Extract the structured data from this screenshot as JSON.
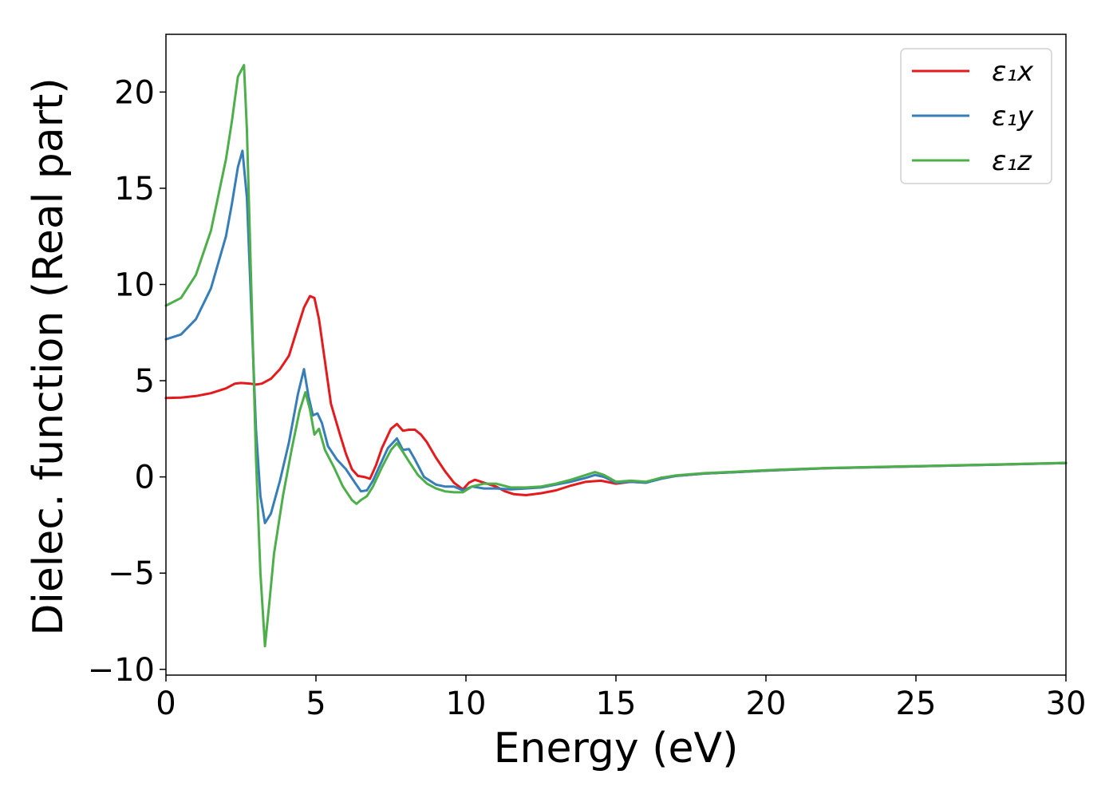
{
  "chart_data": {
    "type": "line",
    "xlabel": "Energy (eV)",
    "ylabel": "Dielec. function (Real part)",
    "xlim": [
      0,
      30
    ],
    "ylim": [
      -10.3,
      23
    ],
    "xticks": [
      0,
      5,
      10,
      15,
      20,
      25,
      30
    ],
    "xtick_labels": [
      "0",
      "5",
      "10",
      "15",
      "20",
      "25",
      "30"
    ],
    "yticks": [
      -10,
      -5,
      0,
      5,
      10,
      15,
      20
    ],
    "ytick_labels": [
      "−10",
      "−5",
      "0",
      "5",
      "10",
      "15",
      "20"
    ],
    "grid": false,
    "legend_position": "top-right",
    "series": [
      {
        "name": "ε₁x",
        "color": "#e41a1c",
        "x": [
          0,
          0.5,
          1.0,
          1.5,
          2.0,
          2.3,
          2.5,
          2.8,
          3.0,
          3.2,
          3.5,
          3.8,
          4.1,
          4.4,
          4.6,
          4.8,
          4.95,
          5.1,
          5.3,
          5.5,
          5.8,
          6.0,
          6.2,
          6.4,
          6.6,
          6.8,
          7.0,
          7.2,
          7.5,
          7.7,
          7.9,
          8.1,
          8.3,
          8.5,
          8.7,
          9.0,
          9.3,
          9.6,
          9.9,
          10.1,
          10.3,
          10.5,
          10.8,
          11.0,
          11.3,
          11.6,
          12.0,
          12.5,
          13.0,
          13.5,
          14.0,
          14.5,
          15.0,
          15.5,
          16.0,
          16.5,
          17.0,
          18.0,
          19.0,
          20.0,
          22.0,
          25.0,
          28.0,
          30.0
        ],
        "y": [
          4.1,
          4.12,
          4.2,
          4.35,
          4.6,
          4.85,
          4.88,
          4.85,
          4.8,
          4.85,
          5.1,
          5.6,
          6.3,
          7.8,
          8.8,
          9.4,
          9.3,
          8.2,
          6.0,
          3.8,
          2.2,
          1.2,
          0.4,
          0.05,
          0.0,
          -0.1,
          0.6,
          1.5,
          2.5,
          2.75,
          2.4,
          2.45,
          2.45,
          2.2,
          1.8,
          1.0,
          0.3,
          -0.3,
          -0.65,
          -0.3,
          -0.15,
          -0.25,
          -0.4,
          -0.5,
          -0.75,
          -0.9,
          -0.95,
          -0.85,
          -0.7,
          -0.45,
          -0.25,
          -0.2,
          -0.35,
          -0.25,
          -0.3,
          -0.05,
          0.05,
          0.18,
          0.25,
          0.33,
          0.45,
          0.55,
          0.65,
          0.72
        ]
      },
      {
        "name": "ε₁y",
        "color": "#377eb8",
        "x": [
          0,
          0.5,
          1.0,
          1.5,
          2.0,
          2.2,
          2.4,
          2.55,
          2.7,
          2.85,
          3.0,
          3.15,
          3.3,
          3.5,
          3.8,
          4.1,
          4.4,
          4.6,
          4.75,
          4.9,
          5.05,
          5.2,
          5.4,
          5.7,
          6.0,
          6.3,
          6.5,
          6.7,
          6.9,
          7.1,
          7.4,
          7.7,
          7.9,
          8.1,
          8.3,
          8.6,
          9.0,
          9.3,
          9.6,
          9.9,
          10.2,
          10.6,
          11.0,
          11.5,
          12.0,
          12.5,
          13.0,
          13.5,
          14.0,
          14.3,
          14.6,
          15.0,
          15.5,
          16.0,
          16.5,
          17.0,
          18.0,
          19.0,
          20.0,
          22.0,
          25.0,
          28.0,
          30.0
        ],
        "y": [
          7.15,
          7.4,
          8.2,
          9.8,
          12.5,
          14.2,
          16.1,
          16.95,
          14.5,
          8.5,
          2.5,
          -1.0,
          -2.4,
          -1.9,
          -0.2,
          1.8,
          4.3,
          5.6,
          4.2,
          3.2,
          3.3,
          2.8,
          1.6,
          0.9,
          0.4,
          -0.3,
          -0.75,
          -0.7,
          -0.2,
          0.5,
          1.5,
          2.0,
          1.4,
          1.45,
          0.9,
          0.0,
          -0.4,
          -0.5,
          -0.5,
          -0.7,
          -0.5,
          -0.6,
          -0.6,
          -0.65,
          -0.6,
          -0.55,
          -0.4,
          -0.25,
          -0.05,
          0.1,
          0.0,
          -0.3,
          -0.25,
          -0.3,
          -0.1,
          0.05,
          0.18,
          0.25,
          0.33,
          0.45,
          0.55,
          0.65,
          0.72
        ]
      },
      {
        "name": "ε₁z",
        "color": "#4daf4a",
        "x": [
          0,
          0.5,
          1.0,
          1.5,
          2.0,
          2.2,
          2.4,
          2.6,
          2.7,
          2.85,
          3.0,
          3.15,
          3.3,
          3.45,
          3.6,
          3.9,
          4.2,
          4.45,
          4.65,
          4.8,
          4.95,
          5.1,
          5.3,
          5.6,
          5.9,
          6.2,
          6.35,
          6.5,
          6.7,
          6.9,
          7.2,
          7.5,
          7.7,
          7.9,
          8.1,
          8.4,
          8.7,
          9.0,
          9.3,
          9.6,
          9.9,
          10.2,
          10.6,
          11.0,
          11.5,
          12.0,
          12.5,
          13.0,
          13.5,
          14.0,
          14.3,
          14.6,
          15.0,
          15.5,
          16.0,
          16.5,
          17.0,
          18.0,
          19.0,
          20.0,
          22.0,
          25.0,
          28.0,
          30.0
        ],
        "y": [
          8.9,
          9.3,
          10.5,
          12.8,
          16.5,
          18.5,
          20.8,
          21.4,
          18.0,
          9.5,
          1.0,
          -5.0,
          -8.8,
          -6.5,
          -4.0,
          -1.0,
          1.5,
          3.4,
          4.4,
          3.5,
          2.2,
          2.5,
          1.4,
          0.5,
          -0.5,
          -1.2,
          -1.4,
          -1.2,
          -1.0,
          -0.5,
          0.5,
          1.4,
          1.75,
          1.3,
          0.8,
          0.1,
          -0.35,
          -0.6,
          -0.75,
          -0.8,
          -0.8,
          -0.5,
          -0.35,
          -0.35,
          -0.55,
          -0.55,
          -0.5,
          -0.35,
          -0.15,
          0.1,
          0.25,
          0.1,
          -0.25,
          -0.2,
          -0.25,
          -0.05,
          0.08,
          0.2,
          0.27,
          0.35,
          0.46,
          0.56,
          0.66,
          0.73
        ]
      }
    ]
  }
}
